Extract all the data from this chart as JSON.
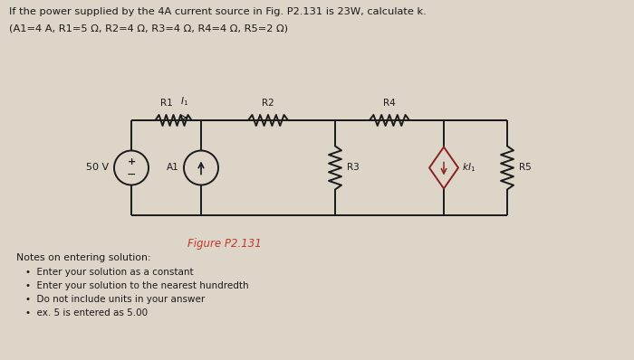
{
  "title_line1": "If the power supplied by the 4A current source in Fig. P2.131 is 23W, calculate k.",
  "title_line2": "(A1=4 A, R1=5 Ω, R2=4 Ω, R3=4 Ω, R4=4 Ω, R5=2 Ω)",
  "figure_label": "Figure P2.131",
  "figure_label_color": "#c0392b",
  "notes_header": "Notes on entering solution:",
  "bullets": [
    "Enter your solution as a constant",
    "Enter your solution to the nearest hundredth",
    "Do not include units in your answer",
    "ex. 5 is entered as 5.00"
  ],
  "bg_color": "#ddd5c8",
  "circuit_line_color": "#1a1a1a",
  "text_color": "#1a1a1a",
  "voltage_source_label": "50 V",
  "current_source_label": "A1",
  "diamond_color": "#8b2020",
  "r1_label": "R1",
  "r2_label": "R2",
  "r3_label": "R3",
  "r4_label": "R4",
  "r5_label": "R5"
}
